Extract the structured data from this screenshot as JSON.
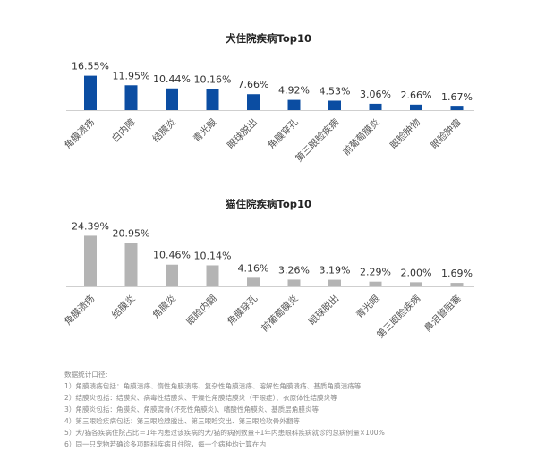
{
  "chart_data": [
    {
      "type": "bar",
      "title": "犬住院疾病Top10",
      "categories": [
        "角膜溃疡",
        "白内障",
        "结膜炎",
        "青光眼",
        "眼球脱出",
        "角膜穿孔",
        "第三眼睑疾病",
        "前葡萄膜炎",
        "眼睑肿物",
        "眼睑肿瘤"
      ],
      "values": [
        16.55,
        11.95,
        10.44,
        10.16,
        7.66,
        4.92,
        4.53,
        3.06,
        2.66,
        1.67
      ],
      "value_labels": [
        "16.55%",
        "11.95%",
        "10.44%",
        "10.16%",
        "7.66%",
        "4.92%",
        "4.53%",
        "3.06%",
        "2.66%",
        "1.67%"
      ],
      "color": "#0b4da2",
      "ylim": [
        0,
        25
      ]
    },
    {
      "type": "bar",
      "title": "猫住院疾病Top10",
      "categories": [
        "角膜溃疡",
        "结膜炎",
        "角膜炎",
        "眼睑内翻",
        "角膜穿孔",
        "前葡萄膜炎",
        "眼球脱出",
        "青光眼",
        "第三眼睑疾病",
        "鼻泪管阻塞"
      ],
      "values": [
        24.39,
        20.95,
        10.46,
        10.14,
        4.16,
        3.26,
        3.19,
        2.29,
        2.0,
        1.69
      ],
      "value_labels": [
        "24.39%",
        "20.95%",
        "10.46%",
        "10.14%",
        "4.16%",
        "3.26%",
        "3.19%",
        "2.29%",
        "2.00%",
        "1.69%"
      ],
      "color": "#b4b4b4",
      "ylim": [
        0,
        25
      ]
    }
  ],
  "notes": {
    "heading": "数据统计口径:",
    "lines": [
      "1）角膜溃疡包括：角膜溃疡、惰性角膜溃疡、复杂性角膜溃疡、溶解性角膜溃疡、基质角膜溃疡等",
      "2）结膜炎包括：结膜炎、病毒性结膜炎、干燥性角膜结膜炎（干眼症）、衣原体性结膜炎等",
      "3）角膜炎包括：角膜炎、角膜腐骨(坏死性角膜炎)、嗜酸性角膜炎、基质层角膜炎等",
      "4）第三眼睑疾病包括：第三眼睑腺脱出、第三眼睑突出、第三眼睑软骨外翻等",
      "5）犬/猫各疾病住院占比＝1年内患过该疾病的犬/猫的病例数量÷1年内患眼科疾病就诊的总病例量×100%",
      "6）同一只宠物若确诊多项眼科疾病且住院，每一个病种均计算在内"
    ]
  }
}
